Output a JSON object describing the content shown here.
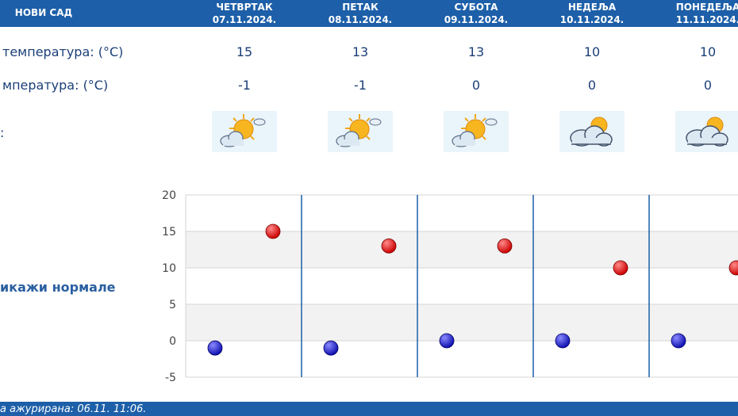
{
  "header": {
    "city": "НОВИ САД",
    "days": [
      {
        "name": "ЧЕТВРТАК",
        "date": "07.11.2024."
      },
      {
        "name": "ПЕТАК",
        "date": "08.11.2024."
      },
      {
        "name": "СУБОТА",
        "date": "09.11.2024."
      },
      {
        "name": "НЕДЕЉА",
        "date": "10.11.2024."
      },
      {
        "name": "ПОНЕДЕЉА",
        "date": "11.11.2024."
      }
    ]
  },
  "rows": {
    "max_label": "температура: (°C)",
    "min_label": "мпература: (°C)",
    "icon_label": ":",
    "max_values": [
      "15",
      "13",
      "13",
      "10",
      "10"
    ],
    "min_values": [
      "-1",
      "-1",
      "0",
      "0",
      "0"
    ],
    "icons": [
      "partly-cloudy-sun-icon",
      "partly-cloudy-sun-icon",
      "partly-cloudy-sun-icon",
      "cloudy-sun-icon",
      "cloudy-sun-icon"
    ]
  },
  "normale_label": "икажи нормале",
  "footer": {
    "updated": "а ажурирана:  06.11. 11:06."
  },
  "colors": {
    "header_bg": "#1d5fa8",
    "text": "#1b3f78",
    "max_marker": "#cc0000",
    "min_marker": "#1010b0",
    "divider": "#1d5fa8"
  },
  "chart_data": {
    "type": "scatter",
    "categories": [
      "ЧЕТВРТАК",
      "ПЕТАК",
      "СУБОТА",
      "НЕДЕЉА",
      "ПОНЕДЕЉА"
    ],
    "series": [
      {
        "values": [
          15,
          13,
          13,
          10,
          10
        ],
        "color": "#cc0000"
      },
      {
        "values": [
          -1,
          -1,
          0,
          0,
          0
        ],
        "color": "#1010b0"
      }
    ],
    "yticks": [
      20,
      15,
      10,
      5,
      0,
      -5
    ],
    "ylim": [
      -5,
      20
    ],
    "grid": true,
    "title": "",
    "xlabel": "",
    "ylabel": ""
  }
}
